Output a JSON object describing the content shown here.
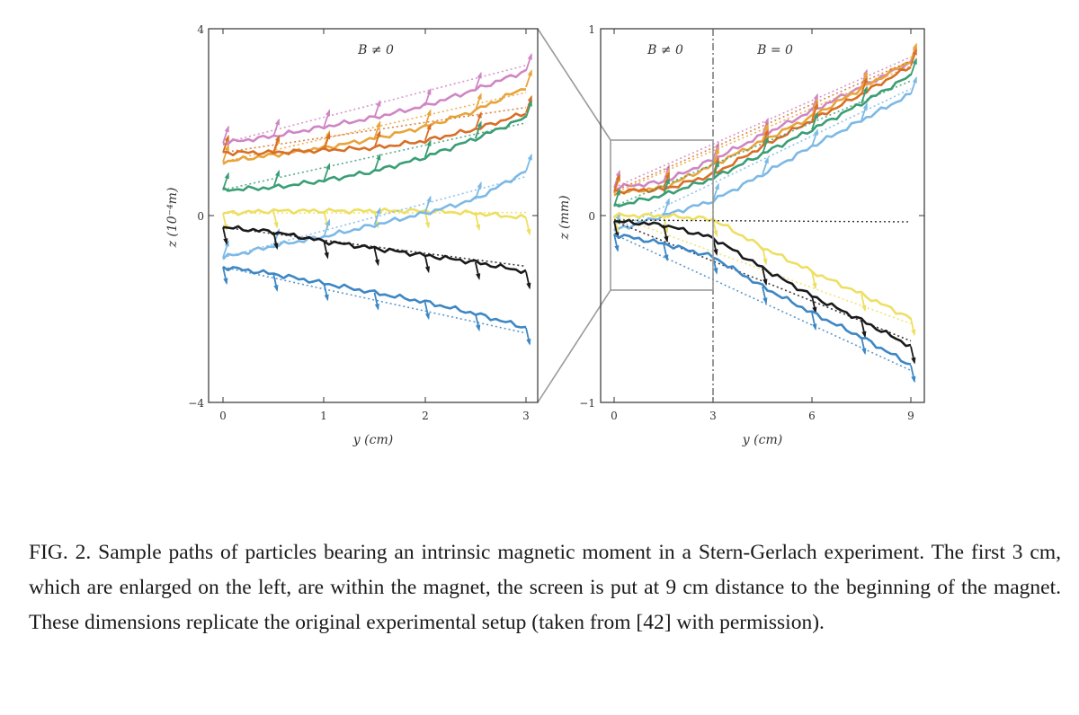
{
  "figure": {
    "left_panel": {
      "region_label": "B ≠ 0",
      "y_axis_label": "z (10⁻⁴m)",
      "x_axis_label": "y (cm)",
      "y_ticks": [
        "4",
        "0",
        "−4"
      ],
      "x_ticks": [
        "0",
        "1",
        "2",
        "3"
      ]
    },
    "right_panel": {
      "region_label_left": "B ≠ 0",
      "region_label_right": "B = 0",
      "y_axis_label": "z (mm)",
      "x_axis_label": "y (cm)",
      "y_ticks": [
        "1",
        "0",
        "−1"
      ],
      "x_ticks": [
        "0",
        "3",
        "6",
        "9"
      ]
    },
    "colors": {
      "pink": "#cf86c4",
      "gold": "#e8a43a",
      "orange": "#d86f26",
      "green": "#3a9e75",
      "yellow": "#eedf63",
      "light_blue": "#7cb9e6",
      "black": "#1a1a1a",
      "blue": "#3d87c4"
    }
  },
  "chart_data": [
    {
      "type": "line",
      "xlabel": "y (cm)",
      "ylabel": "z (10⁻⁴m)",
      "xlim": [
        0,
        3
      ],
      "ylim": [
        -4,
        4
      ],
      "annotations": [
        "B ≠ 0"
      ],
      "x": [
        0,
        0.5,
        1,
        1.5,
        2,
        2.5,
        3
      ],
      "series": [
        {
          "color": "pink",
          "values": [
            1.55,
            1.7,
            1.9,
            2.1,
            2.35,
            2.7,
            3.1
          ]
        },
        {
          "color": "gold",
          "values": [
            1.15,
            1.3,
            1.45,
            1.65,
            1.9,
            2.25,
            2.75
          ]
        },
        {
          "color": "orange",
          "values": [
            1.35,
            1.35,
            1.4,
            1.45,
            1.6,
            1.85,
            2.2
          ]
        },
        {
          "color": "green",
          "values": [
            0.55,
            0.6,
            0.75,
            0.95,
            1.25,
            1.65,
            2.1
          ]
        },
        {
          "color": "yellow",
          "values": [
            0.05,
            0.1,
            0.1,
            0.1,
            0.1,
            0.05,
            -0.05
          ]
        },
        {
          "color": "light_blue",
          "values": [
            -0.9,
            -0.65,
            -0.45,
            -0.2,
            0.05,
            0.35,
            0.95
          ]
        },
        {
          "color": "black",
          "values": [
            -0.25,
            -0.35,
            -0.55,
            -0.7,
            -0.85,
            -1.0,
            -1.2
          ]
        },
        {
          "color": "blue",
          "values": [
            -1.1,
            -1.25,
            -1.45,
            -1.65,
            -1.85,
            -2.1,
            -2.4
          ]
        }
      ]
    },
    {
      "type": "line",
      "xlabel": "y (cm)",
      "ylabel": "z (mm)",
      "xlim": [
        0,
        9
      ],
      "ylim": [
        -1,
        1
      ],
      "annotations": [
        "B ≠ 0",
        "B = 0"
      ],
      "x": [
        0,
        1.5,
        3,
        4.5,
        6,
        7.5,
        9
      ],
      "series": [
        {
          "color": "pink",
          "values": [
            0.15,
            0.18,
            0.3,
            0.43,
            0.56,
            0.69,
            0.82
          ]
        },
        {
          "color": "gold",
          "values": [
            0.12,
            0.15,
            0.27,
            0.4,
            0.53,
            0.68,
            0.83
          ]
        },
        {
          "color": "orange",
          "values": [
            0.13,
            0.14,
            0.22,
            0.37,
            0.51,
            0.65,
            0.8
          ]
        },
        {
          "color": "green",
          "values": [
            0.05,
            0.11,
            0.2,
            0.33,
            0.46,
            0.6,
            0.75
          ]
        },
        {
          "color": "light_blue",
          "values": [
            -0.08,
            0.0,
            0.08,
            0.22,
            0.37,
            0.51,
            0.65
          ]
        },
        {
          "color": "yellow",
          "values": [
            0.0,
            0.0,
            -0.02,
            -0.17,
            -0.3,
            -0.42,
            -0.55
          ]
        },
        {
          "color": "black",
          "values": [
            -0.03,
            -0.05,
            -0.12,
            -0.28,
            -0.43,
            -0.56,
            -0.7
          ]
        },
        {
          "color": "blue",
          "values": [
            -0.1,
            -0.15,
            -0.22,
            -0.38,
            -0.52,
            -0.65,
            -0.8
          ]
        }
      ]
    }
  ],
  "caption": {
    "text": "FIG. 2. Sample paths of particles bearing an intrinsic magnetic moment in a Stern-Gerlach experiment. The first 3 cm, which are enlarged on the left, are within the magnet, the screen is put at 9 cm distance to the beginning of the magnet. These dimensions replicate the original experimental setup (taken from [42] with permission)."
  }
}
